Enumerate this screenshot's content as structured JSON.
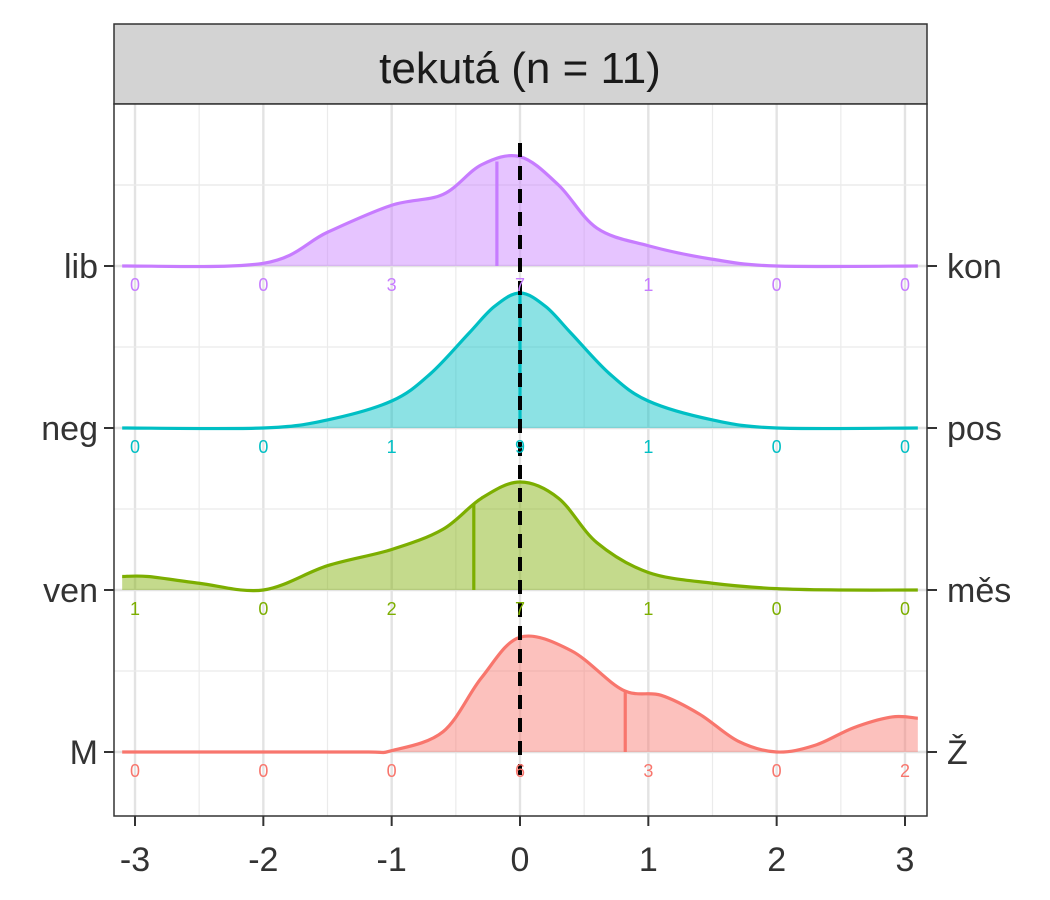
{
  "chart_data": {
    "type": "ridgeline-density",
    "title": "tekutá (n = 11)",
    "xlim": [
      -3.1,
      3.1
    ],
    "x_ticks": [
      -3,
      -2,
      -1,
      0,
      1,
      2,
      3
    ],
    "x_tick_labels": [
      "-3",
      "-2",
      "-1",
      "0",
      "1",
      "2",
      "3"
    ],
    "reference_line": 0,
    "grid": true,
    "series": [
      {
        "left_label": "M",
        "right_label": "Ž",
        "color": "#F8766D",
        "mean": 0.82,
        "counts_x": [
          -3,
          -2,
          -1,
          0,
          1,
          2,
          3
        ],
        "counts": [
          "0",
          "0",
          "0",
          "6",
          "3",
          "0",
          "2"
        ],
        "density_x": [
          -3.1,
          -2,
          -1.2,
          -1,
          -0.6,
          -0.3,
          0,
          0.4,
          0.8,
          1.1,
          1.4,
          1.7,
          2,
          2.3,
          2.6,
          2.9,
          3.1
        ],
        "density_y": [
          0,
          0,
          0,
          0.01,
          0.15,
          0.55,
          0.85,
          0.75,
          0.46,
          0.42,
          0.28,
          0.08,
          0.0,
          0.05,
          0.18,
          0.26,
          0.25
        ]
      },
      {
        "left_label": "ven",
        "right_label": "měs",
        "color": "#7CAE00",
        "mean": -0.36,
        "counts_x": [
          -3,
          -2,
          -1,
          0,
          1,
          2,
          3
        ],
        "counts": [
          "1",
          "0",
          "2",
          "7",
          "1",
          "0",
          "0"
        ],
        "density_x": [
          -3.1,
          -2.9,
          -2.5,
          -2,
          -1.5,
          -1,
          -0.6,
          -0.3,
          0,
          0.3,
          0.6,
          1,
          1.5,
          2,
          2.5,
          3.1
        ],
        "density_y": [
          0.1,
          0.1,
          0.05,
          0.0,
          0.18,
          0.3,
          0.45,
          0.68,
          0.8,
          0.68,
          0.35,
          0.13,
          0.05,
          0.01,
          0.0,
          0.0
        ]
      },
      {
        "left_label": "neg",
        "right_label": "pos",
        "color": "#00BFC4",
        "mean": 0.0,
        "counts_x": [
          -3,
          -2,
          -1,
          0,
          1,
          2,
          3
        ],
        "counts": [
          "0",
          "0",
          "1",
          "9",
          "1",
          "0",
          "0"
        ],
        "density_x": [
          -3.1,
          -2,
          -1.5,
          -1,
          -0.7,
          -0.4,
          -0.2,
          0,
          0.2,
          0.4,
          0.7,
          1,
          1.5,
          2,
          3.1
        ],
        "density_y": [
          0,
          0,
          0.06,
          0.2,
          0.4,
          0.7,
          0.9,
          1.0,
          0.9,
          0.7,
          0.4,
          0.2,
          0.06,
          0.0,
          0
        ]
      },
      {
        "left_label": "lib",
        "right_label": "kon",
        "color": "#C77CFF",
        "mean": -0.18,
        "counts_x": [
          -3,
          -2,
          -1,
          0,
          1,
          2,
          3
        ],
        "counts": [
          "0",
          "0",
          "3",
          "7",
          "1",
          "0",
          "0"
        ],
        "density_x": [
          -3.1,
          -2,
          -1.5,
          -1,
          -0.6,
          -0.3,
          0,
          0.3,
          0.6,
          1,
          1.5,
          2,
          3.1
        ],
        "density_y": [
          0,
          0.02,
          0.25,
          0.45,
          0.53,
          0.75,
          0.81,
          0.6,
          0.28,
          0.15,
          0.05,
          0.0,
          0
        ]
      }
    ]
  }
}
